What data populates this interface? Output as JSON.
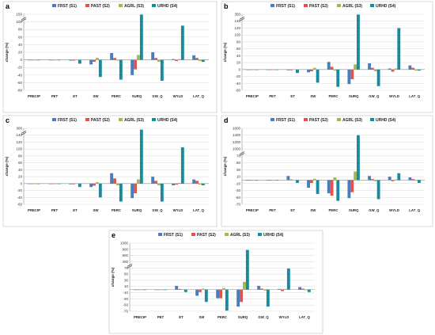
{
  "colors": {
    "FRST": "#4a7ebb",
    "PAST": "#e0534f",
    "AGRL": "#9bbb59",
    "URHD": "#1b8a9e",
    "grid": "#d9d9d9",
    "axis": "#8c8c8c"
  },
  "chart_data": [
    {
      "type": "bar",
      "panel": "a",
      "ylabel": "change (%)",
      "categories": [
        "PRECIP",
        "PET",
        "ET",
        "SW",
        "PERC",
        "SURQ",
        "GW_Q",
        "WYLD",
        "LAT_Q"
      ],
      "yticks": [
        -80,
        -60,
        -40,
        -20,
        0,
        20,
        40,
        60,
        80,
        100,
        150
      ],
      "tick_labels": [
        "-80",
        "-60",
        "-40",
        "-20",
        "0",
        "20",
        "40",
        "60",
        "80",
        "100",
        "150"
      ],
      "break_at": 100,
      "ylim": [
        -80,
        150
      ],
      "series": [
        {
          "name": "FRST (S1)",
          "values": [
            0,
            0,
            -2,
            -12,
            18,
            -40,
            20,
            2,
            12
          ]
        },
        {
          "name": "PAST (S2)",
          "values": [
            0,
            0,
            -2,
            -5,
            5,
            -25,
            5,
            -3,
            5
          ]
        },
        {
          "name": "AGRL (S3)",
          "values": [
            0,
            0,
            1,
            5,
            -2,
            13,
            -5,
            2,
            -3
          ]
        },
        {
          "name": "URHD (S4)",
          "values": [
            0,
            0,
            -10,
            -45,
            -52,
            148,
            -55,
            90,
            -5
          ]
        }
      ],
      "legend": [
        "FRST (S1)",
        "PAST (S2)",
        "AGRL (S3)",
        "URHD (S4)"
      ],
      "legend_position": "top",
      "grid": true
    },
    {
      "type": "bar",
      "panel": "b",
      "ylabel": "change (%)",
      "categories": [
        "PRECIP",
        "PET",
        "ET",
        "SW",
        "PERC",
        "SURQ",
        "GW_Q",
        "WYLD",
        "LAT_Q"
      ],
      "yticks": [
        -60,
        -40,
        -20,
        0,
        20,
        40,
        60,
        80,
        100,
        120,
        140,
        350
      ],
      "tick_labels": [
        "-60",
        "-40",
        "-20",
        "0",
        "20",
        "40",
        "60",
        "80",
        "100",
        "120",
        "140",
        "350"
      ],
      "break_at": 140,
      "ylim": [
        -60,
        350
      ],
      "series": [
        {
          "name": "FRST (S1)",
          "values": [
            0,
            0,
            -2,
            -8,
            22,
            -42,
            18,
            3,
            12
          ]
        },
        {
          "name": "PAST (S2)",
          "values": [
            0,
            0,
            -2,
            -5,
            8,
            -28,
            5,
            -6,
            5
          ]
        },
        {
          "name": "AGRL (S3)",
          "values": [
            0,
            0,
            1,
            5,
            -3,
            15,
            -5,
            3,
            -3
          ]
        },
        {
          "name": "URHD (S4)",
          "values": [
            0,
            0,
            -10,
            -38,
            -50,
            340,
            -48,
            120,
            -3
          ]
        }
      ],
      "legend": [
        "FRST (S1)",
        "PAST (S2)",
        "AGRL (S3)",
        "URHD (S4)"
      ],
      "legend_position": "top",
      "grid": true
    },
    {
      "type": "bar",
      "panel": "c",
      "ylabel": "change (%)",
      "categories": [
        "PRECIP",
        "PET",
        "ET",
        "SW",
        "PERC",
        "SURQ",
        "GW_Q",
        "WYLD",
        "LAT_Q"
      ],
      "yticks": [
        -60,
        -40,
        -20,
        0,
        20,
        40,
        60,
        80,
        100,
        120,
        140,
        300
      ],
      "tick_labels": [
        "-60",
        "-40",
        "-20",
        "0",
        "20",
        "40",
        "60",
        "80",
        "100",
        "120",
        "140",
        "300"
      ],
      "break_at": 140,
      "ylim": [
        -60,
        300
      ],
      "series": [
        {
          "name": "FRST (S1)",
          "values": [
            0,
            0,
            -2,
            -10,
            30,
            -42,
            20,
            -5,
            12
          ]
        },
        {
          "name": "PAST (S2)",
          "values": [
            0,
            0,
            -2,
            -6,
            15,
            -28,
            8,
            -3,
            8
          ]
        },
        {
          "name": "AGRL (S3)",
          "values": [
            0,
            0,
            1,
            4,
            -5,
            12,
            -5,
            2,
            -3
          ]
        },
        {
          "name": "URHD (S4)",
          "values": [
            0,
            0,
            -10,
            -40,
            -52,
            270,
            -52,
            105,
            -5
          ]
        }
      ],
      "legend": [
        "FRST (S1)",
        "PAST (S2)",
        "AGRL (S3)",
        "URHD (S4)"
      ],
      "legend_position": "top",
      "grid": true
    },
    {
      "type": "bar",
      "panel": "d",
      "ylabel": "change (%)",
      "categories": [
        "PRECIP",
        "PET",
        "ET",
        "SW",
        "PERC",
        "SURQ",
        "GW_Q",
        "WYLD",
        "LAT_Q"
      ],
      "yticks": [
        -70,
        -50,
        -30,
        -10,
        10,
        30,
        50,
        70,
        1000,
        1200,
        1400,
        1600
      ],
      "tick_labels": [
        "-70",
        "-50",
        "-30",
        "-10",
        "10",
        "30",
        "50",
        "70",
        "1000",
        "1200",
        "1400",
        "1600"
      ],
      "break_at": 70,
      "ylim": [
        -70,
        1600
      ],
      "series": [
        {
          "name": "FRST (S1)",
          "values": [
            0,
            0,
            12,
            -22,
            -38,
            -52,
            12,
            10,
            8
          ]
        },
        {
          "name": "PAST (S2)",
          "values": [
            0,
            0,
            2,
            -8,
            -45,
            -35,
            3,
            -3,
            3
          ]
        },
        {
          "name": "AGRL (S3)",
          "values": [
            0,
            0,
            1,
            4,
            8,
            25,
            -3,
            2,
            -2
          ]
        },
        {
          "name": "URHD (S4)",
          "values": [
            0,
            0,
            -8,
            -40,
            -60,
            1400,
            -55,
            20,
            -8
          ]
        }
      ],
      "legend": [
        "FRST (S1)",
        "PAST (S2)",
        "AGRL (S3)",
        "URHD (S4)"
      ],
      "legend_position": "top",
      "grid": true
    },
    {
      "type": "bar",
      "panel": "e",
      "ylabel": "change (%)",
      "categories": [
        "PRECIP",
        "PET",
        "ET",
        "SW",
        "PERC",
        "SURQ",
        "GW_Q",
        "WYLD",
        "LAT_Q"
      ],
      "yticks": [
        -70,
        -50,
        -30,
        -10,
        10,
        30,
        50,
        70,
        400,
        600,
        800,
        1000
      ],
      "tick_labels": [
        "-70",
        "-50",
        "-30",
        "-10",
        "10",
        "30",
        "50",
        "70",
        "400",
        "600",
        "800",
        "1000"
      ],
      "break_at": 70,
      "ylim": [
        -70,
        1000
      ],
      "series": [
        {
          "name": "FRST (S1)",
          "values": [
            0,
            0,
            12,
            -20,
            -28,
            -55,
            12,
            2,
            8
          ]
        },
        {
          "name": "PAST (S2)",
          "values": [
            0,
            0,
            2,
            -8,
            -28,
            -40,
            3,
            -5,
            3
          ]
        },
        {
          "name": "AGRL (S3)",
          "values": [
            0,
            0,
            1,
            3,
            5,
            25,
            -3,
            2,
            -2
          ]
        },
        {
          "name": "URHD (S4)",
          "values": [
            0,
            0,
            -8,
            -40,
            -68,
            780,
            -55,
            68,
            -8
          ]
        }
      ],
      "legend": [
        "FRST (S1)",
        "PAST (S2)",
        "AGRL (S3)",
        "URHD (S4)"
      ],
      "legend_position": "top",
      "grid": true
    }
  ]
}
